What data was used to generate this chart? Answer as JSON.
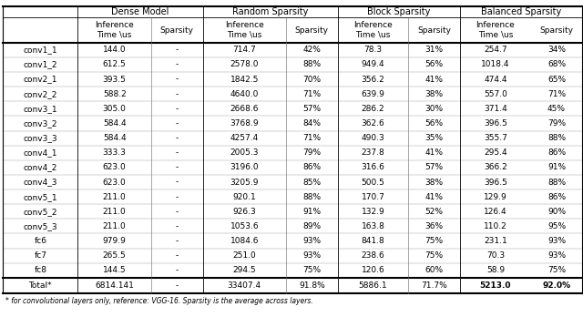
{
  "col_groups": [
    "Dense Model",
    "Random Sparsity",
    "Block Sparsity",
    "Balanced Sparsity"
  ],
  "row_labels": [
    "conv1_1",
    "conv1_2",
    "conv2_1",
    "conv2_2",
    "conv3_1",
    "conv3_2",
    "conv3_3",
    "conv4_1",
    "conv4_2",
    "conv4_3",
    "conv5_1",
    "conv5_2",
    "conv5_3",
    "fc6",
    "fc7",
    "fc8"
  ],
  "total_label": "Total*",
  "data": [
    [
      "144.0",
      "-",
      "714.7",
      "42%",
      "78.3",
      "31%",
      "254.7",
      "34%"
    ],
    [
      "612.5",
      "-",
      "2578.0",
      "88%",
      "949.4",
      "56%",
      "1018.4",
      "68%"
    ],
    [
      "393.5",
      "-",
      "1842.5",
      "70%",
      "356.2",
      "41%",
      "474.4",
      "65%"
    ],
    [
      "588.2",
      "-",
      "4640.0",
      "71%",
      "639.9",
      "38%",
      "557.0",
      "71%"
    ],
    [
      "305.0",
      "-",
      "2668.6",
      "57%",
      "286.2",
      "30%",
      "371.4",
      "45%"
    ],
    [
      "584.4",
      "-",
      "3768.9",
      "84%",
      "362.6",
      "56%",
      "396.5",
      "79%"
    ],
    [
      "584.4",
      "-",
      "4257.4",
      "71%",
      "490.3",
      "35%",
      "355.7",
      "88%"
    ],
    [
      "333.3",
      "-",
      "2005.3",
      "79%",
      "237.8",
      "41%",
      "295.4",
      "86%"
    ],
    [
      "623.0",
      "-",
      "3196.0",
      "86%",
      "316.6",
      "57%",
      "366.2",
      "91%"
    ],
    [
      "623.0",
      "-",
      "3205.9",
      "85%",
      "500.5",
      "38%",
      "396.5",
      "88%"
    ],
    [
      "211.0",
      "-",
      "920.1",
      "88%",
      "170.7",
      "41%",
      "129.9",
      "86%"
    ],
    [
      "211.0",
      "-",
      "926.3",
      "91%",
      "132.9",
      "52%",
      "126.4",
      "90%"
    ],
    [
      "211.0",
      "-",
      "1053.6",
      "89%",
      "163.8",
      "36%",
      "110.2",
      "95%"
    ],
    [
      "979.9",
      "-",
      "1084.6",
      "93%",
      "841.8",
      "75%",
      "231.1",
      "93%"
    ],
    [
      "265.5",
      "-",
      "251.0",
      "93%",
      "238.6",
      "75%",
      "70.3",
      "93%"
    ],
    [
      "144.5",
      "-",
      "294.5",
      "75%",
      "120.6",
      "60%",
      "58.9",
      "75%"
    ]
  ],
  "total_row": [
    "6814.141",
    "-",
    "33407.4",
    "91.8%",
    "5886.1",
    "71.7%",
    "5213.0",
    "92.0%"
  ],
  "note": "* for convolutional layers only, reference: VGG-16. Sparsity is the average across layers.",
  "font_size": 6.5,
  "header_font_size": 7.0,
  "note_font_size": 5.5
}
